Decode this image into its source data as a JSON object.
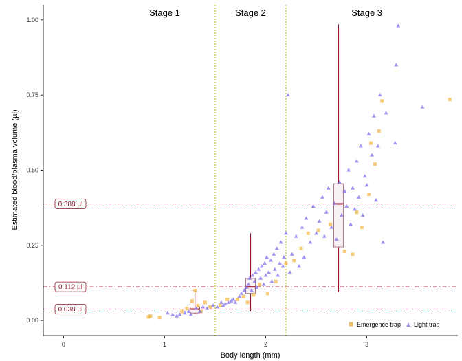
{
  "chart_data": {
    "type": "scatter",
    "xlabel": "Body length (mm)",
    "ylabel": "Estimated blood/plasma volume (µl)",
    "xlim": [
      -0.2,
      3.9
    ],
    "ylim": [
      -0.05,
      1.05
    ],
    "x_ticks": [
      {
        "value": 0,
        "label": "0"
      },
      {
        "value": 1,
        "label": "1"
      },
      {
        "value": 2,
        "label": "2"
      },
      {
        "value": 3,
        "label": "3"
      }
    ],
    "y_ticks": [
      {
        "value": 0,
        "label": "0.00"
      },
      {
        "value": 0.25,
        "label": "0.25"
      },
      {
        "value": 0.5,
        "label": "0.50"
      },
      {
        "value": 0.75,
        "label": "0.75"
      },
      {
        "value": 1.0,
        "label": "1.00"
      }
    ],
    "grid": false,
    "legend_position": "bottom-right",
    "colors": {
      "emergence": "#f2b33d",
      "light": "#7b68ee",
      "reference": "#8b1a2b",
      "stage_divider": "#b5b000",
      "box": "#9b5a6a"
    },
    "stages": [
      {
        "label": "Stage 1",
        "x_center": 1.0
      },
      {
        "label": "Stage 2",
        "x_center": 1.85
      },
      {
        "label": "Stage 3",
        "x_center": 3.0
      }
    ],
    "stage_dividers": [
      1.5,
      2.2
    ],
    "reference_lines": [
      {
        "value": 0.388,
        "label": "0.388  µl"
      },
      {
        "value": 0.112,
        "label": "0.112  µl"
      },
      {
        "value": 0.038,
        "label": "0.038  µl"
      }
    ],
    "boxplots": [
      {
        "x": 1.3,
        "whisker_low": 0.02,
        "q1": 0.025,
        "median": 0.038,
        "q3": 0.045,
        "whisker_high": 0.1
      },
      {
        "x": 1.85,
        "whisker_low": 0.03,
        "q1": 0.09,
        "median": 0.112,
        "q3": 0.14,
        "whisker_high": 0.29
      },
      {
        "x": 2.72,
        "whisker_low": 0.095,
        "q1": 0.245,
        "median": 0.388,
        "q3": 0.455,
        "whisker_high": 0.985
      }
    ],
    "series": [
      {
        "name": "Emergence trap",
        "marker": "square",
        "points": [
          [
            0.84,
            0.012
          ],
          [
            0.86,
            0.015
          ],
          [
            0.95,
            0.01
          ],
          [
            1.17,
            0.03
          ],
          [
            1.22,
            0.04
          ],
          [
            1.27,
            0.065
          ],
          [
            1.3,
            0.1
          ],
          [
            1.33,
            0.05
          ],
          [
            1.36,
            0.03
          ],
          [
            1.4,
            0.06
          ],
          [
            1.45,
            0.045
          ],
          [
            1.55,
            0.05
          ],
          [
            1.62,
            0.07
          ],
          [
            1.72,
            0.07
          ],
          [
            1.78,
            0.08
          ],
          [
            1.82,
            0.06
          ],
          [
            1.88,
            0.085
          ],
          [
            1.94,
            0.12
          ],
          [
            2.02,
            0.09
          ],
          [
            2.1,
            0.13
          ],
          [
            2.2,
            0.19
          ],
          [
            2.28,
            0.2
          ],
          [
            2.35,
            0.24
          ],
          [
            2.42,
            0.29
          ],
          [
            2.52,
            0.3
          ],
          [
            2.64,
            0.32
          ],
          [
            2.78,
            0.23
          ],
          [
            2.86,
            0.22
          ],
          [
            2.9,
            0.36
          ],
          [
            2.95,
            0.31
          ],
          [
            3.02,
            0.42
          ],
          [
            3.04,
            0.59
          ],
          [
            3.08,
            0.52
          ],
          [
            3.12,
            0.63
          ],
          [
            3.15,
            0.73
          ],
          [
            3.82,
            0.735
          ]
        ]
      },
      {
        "name": "Light trap",
        "marker": "triangle",
        "points": [
          [
            1.03,
            0.025
          ],
          [
            1.08,
            0.02
          ],
          [
            1.12,
            0.015
          ],
          [
            1.15,
            0.02
          ],
          [
            1.2,
            0.025
          ],
          [
            1.24,
            0.03
          ],
          [
            1.26,
            0.02
          ],
          [
            1.31,
            0.04
          ],
          [
            1.35,
            0.03
          ],
          [
            1.38,
            0.045
          ],
          [
            1.42,
            0.04
          ],
          [
            1.48,
            0.05
          ],
          [
            1.52,
            0.045
          ],
          [
            1.56,
            0.06
          ],
          [
            1.58,
            0.05
          ],
          [
            1.6,
            0.055
          ],
          [
            1.63,
            0.06
          ],
          [
            1.66,
            0.065
          ],
          [
            1.68,
            0.07
          ],
          [
            1.7,
            0.06
          ],
          [
            1.74,
            0.08
          ],
          [
            1.76,
            0.09
          ],
          [
            1.79,
            0.1
          ],
          [
            1.81,
            0.11
          ],
          [
            1.83,
            0.12
          ],
          [
            1.84,
            0.14
          ],
          [
            1.86,
            0.1
          ],
          [
            1.87,
            0.15
          ],
          [
            1.89,
            0.13
          ],
          [
            1.9,
            0.16
          ],
          [
            1.91,
            0.11
          ],
          [
            1.93,
            0.17
          ],
          [
            1.95,
            0.14
          ],
          [
            1.96,
            0.18
          ],
          [
            1.98,
            0.12
          ],
          [
            1.99,
            0.19
          ],
          [
            2.0,
            0.15
          ],
          [
            2.01,
            0.21
          ],
          [
            2.03,
            0.16
          ],
          [
            2.05,
            0.2
          ],
          [
            2.06,
            0.13
          ],
          [
            2.08,
            0.22
          ],
          [
            2.09,
            0.17
          ],
          [
            2.11,
            0.24
          ],
          [
            2.12,
            0.15
          ],
          [
            2.14,
            0.19
          ],
          [
            2.15,
            0.26
          ],
          [
            2.17,
            0.18
          ],
          [
            2.18,
            0.21
          ],
          [
            2.2,
            0.29
          ],
          [
            2.22,
            0.75
          ],
          [
            2.24,
            0.16
          ],
          [
            2.26,
            0.22
          ],
          [
            2.3,
            0.28
          ],
          [
            2.33,
            0.18
          ],
          [
            2.36,
            0.31
          ],
          [
            2.38,
            0.21
          ],
          [
            2.4,
            0.34
          ],
          [
            2.44,
            0.26
          ],
          [
            2.47,
            0.38
          ],
          [
            2.5,
            0.29
          ],
          [
            2.53,
            0.33
          ],
          [
            2.56,
            0.41
          ],
          [
            2.58,
            0.28
          ],
          [
            2.6,
            0.36
          ],
          [
            2.62,
            0.44
          ],
          [
            2.65,
            0.31
          ],
          [
            2.68,
            0.39
          ],
          [
            2.7,
            0.27
          ],
          [
            2.73,
            0.46
          ],
          [
            2.75,
            0.35
          ],
          [
            2.78,
            0.43
          ],
          [
            2.8,
            0.38
          ],
          [
            2.82,
            0.5
          ],
          [
            2.84,
            0.32
          ],
          [
            2.86,
            0.44
          ],
          [
            2.88,
            0.37
          ],
          [
            2.9,
            0.53
          ],
          [
            2.92,
            0.41
          ],
          [
            2.94,
            0.58
          ],
          [
            2.96,
            0.35
          ],
          [
            2.98,
            0.48
          ],
          [
            3.0,
            0.45
          ],
          [
            3.02,
            0.62
          ],
          [
            3.05,
            0.55
          ],
          [
            3.07,
            0.68
          ],
          [
            3.09,
            0.4
          ],
          [
            3.11,
            0.58
          ],
          [
            3.13,
            0.75
          ],
          [
            3.16,
            0.26
          ],
          [
            3.19,
            0.69
          ],
          [
            3.28,
            0.59
          ],
          [
            3.29,
            0.85
          ],
          [
            3.31,
            0.98
          ],
          [
            3.55,
            0.71
          ]
        ]
      }
    ]
  }
}
